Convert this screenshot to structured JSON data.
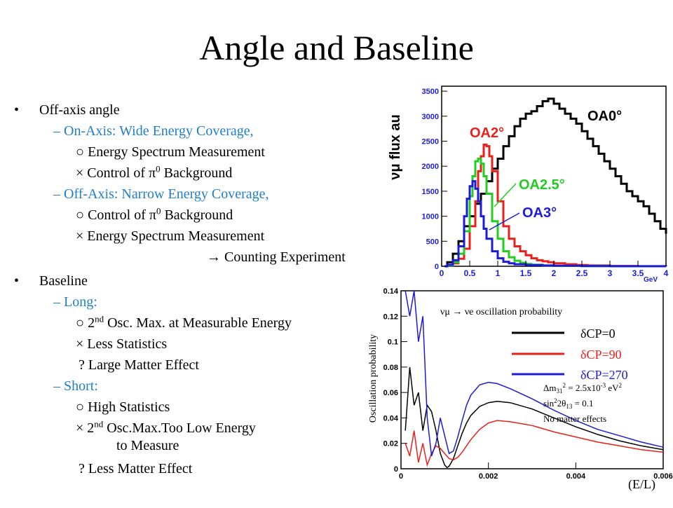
{
  "title": "Angle and Baseline",
  "bullets": {
    "offaxis": {
      "label": "Off-axis angle",
      "onaxis": {
        "label": "On-Axis: Wide Energy Coverage,",
        "item1": "○ Energy Spectrum Measurement",
        "item2_pre": "× Control of ",
        "item2_sym": "π",
        "item2_sup": "0",
        "item2_post": " Background"
      },
      "offaxis_sub": {
        "label": "Off-Axis: Narrow Energy Coverage,",
        "item1_pre": "○ Control of ",
        "item1_sym": "π",
        "item1_sup": "0",
        "item1_post": " Background",
        "item2": "× Energy Spectrum Measurement",
        "item3": "→ Counting Experiment"
      }
    },
    "baseline": {
      "label": "Baseline",
      "long": {
        "label": "Long:",
        "item1_pre": "○ 2",
        "item1_sup": "nd",
        "item1_post": " Osc. Max. at Measurable Energy",
        "item2": "× Less Statistics",
        "item3": "? Large Matter Effect"
      },
      "short": {
        "label": "Short:",
        "item1": "○ High Statistics",
        "item2_pre": "× 2",
        "item2_sup": "nd",
        "item2_post": " Osc.Max.Too Low Energy",
        "item2_cont": "to Measure",
        "item3": "? Less Matter Effect"
      }
    }
  },
  "chart_data": [
    {
      "type": "line",
      "ylabel": "νμ flux au",
      "xlabel": "GeV",
      "xlim": [
        0,
        4
      ],
      "ylim": [
        0,
        3600
      ],
      "x_ticks": [
        "0",
        "0.5",
        "1",
        "1.5",
        "2",
        "2.5",
        "3",
        "3.5",
        "4"
      ],
      "y_ticks": [
        "0",
        "500",
        "1000",
        "1500",
        "2000",
        "2500",
        "3000",
        "3500"
      ],
      "series": [
        {
          "name": "OA0°",
          "color": "#000000",
          "x": [
            0.05,
            0.1,
            0.2,
            0.3,
            0.4,
            0.5,
            0.6,
            0.7,
            0.8,
            0.9,
            1.0,
            1.1,
            1.2,
            1.3,
            1.4,
            1.5,
            1.6,
            1.7,
            1.8,
            1.9,
            2.0,
            2.1,
            2.2,
            2.3,
            2.4,
            2.5,
            2.6,
            2.7,
            2.8,
            2.9,
            3.0,
            3.1,
            3.2,
            3.3,
            3.4,
            3.5,
            3.6,
            3.7,
            3.8,
            3.9,
            4.0
          ],
          "y": [
            0,
            80,
            250,
            500,
            800,
            1000,
            1250,
            1450,
            1700,
            1950,
            2150,
            2400,
            2600,
            2800,
            2950,
            3050,
            3100,
            3200,
            3300,
            3350,
            3250,
            3150,
            3050,
            2950,
            2850,
            2700,
            2550,
            2400,
            2250,
            2100,
            1950,
            1800,
            1650,
            1500,
            1400,
            1300,
            1200,
            1050,
            900,
            750,
            650
          ]
        },
        {
          "name": "OA2°",
          "color": "#e8201c",
          "x": [
            0.05,
            0.1,
            0.2,
            0.3,
            0.4,
            0.5,
            0.6,
            0.65,
            0.7,
            0.75,
            0.8,
            0.85,
            0.9,
            1.0,
            1.1,
            1.2,
            1.3,
            1.4,
            1.5,
            1.6,
            1.7,
            1.8,
            1.9,
            2.0,
            2.2,
            2.4,
            2.6,
            3.0,
            3.5,
            4.0
          ],
          "y": [
            0,
            20,
            60,
            150,
            350,
            800,
            1300,
            1900,
            2200,
            2430,
            2400,
            2200,
            1900,
            1300,
            800,
            550,
            400,
            300,
            220,
            160,
            120,
            100,
            80,
            60,
            40,
            25,
            15,
            5,
            0,
            0
          ]
        },
        {
          "name": "OA2.5°",
          "color": "#22cc22",
          "x": [
            0.05,
            0.1,
            0.2,
            0.3,
            0.4,
            0.5,
            0.55,
            0.6,
            0.65,
            0.7,
            0.75,
            0.8,
            0.9,
            1.0,
            1.1,
            1.2,
            1.3,
            1.4,
            1.5,
            1.6,
            1.8,
            2.0,
            2.5,
            3.0,
            4.0
          ],
          "y": [
            0,
            20,
            80,
            250,
            700,
            1400,
            1800,
            2100,
            2150,
            2050,
            1800,
            1450,
            900,
            550,
            300,
            180,
            110,
            70,
            45,
            30,
            15,
            8,
            2,
            0,
            0
          ]
        },
        {
          "name": "OA3°",
          "color": "#1c1cd6",
          "x": [
            0.05,
            0.1,
            0.2,
            0.3,
            0.4,
            0.45,
            0.5,
            0.55,
            0.6,
            0.65,
            0.7,
            0.75,
            0.8,
            0.9,
            1.0,
            1.1,
            1.2,
            1.3,
            1.5,
            1.8,
            2.0,
            2.5,
            3.0,
            4.0
          ],
          "y": [
            0,
            30,
            120,
            400,
            1000,
            1350,
            1600,
            1700,
            1550,
            1300,
            1000,
            750,
            550,
            300,
            160,
            90,
            60,
            40,
            25,
            15,
            10,
            5,
            2,
            0
          ]
        }
      ],
      "legend_labels": [
        "OA0°",
        "OA2°",
        "OA2.5°",
        "OA3°"
      ]
    },
    {
      "type": "line",
      "ylabel": "Oscillation probability",
      "xlabel": "(E/L)",
      "xlim": [
        0,
        0.006
      ],
      "ylim": [
        0,
        0.14
      ],
      "x_ticks": [
        "0",
        "0.002",
        "0.004",
        "0.006"
      ],
      "y_ticks": [
        "0",
        "0.02",
        "0.04",
        "0.06",
        "0.08",
        "0.1",
        "0.12",
        "0.14"
      ],
      "legend_title": "νμ → νe oscillation probability",
      "series": [
        {
          "name": "δCP=0",
          "color": "#000000",
          "x": [
            0.0001,
            0.0002,
            0.0003,
            0.0004,
            0.0005,
            0.0006,
            0.0007,
            0.0008,
            0.0009,
            0.001,
            0.00105,
            0.0011,
            0.0012,
            0.0013,
            0.0014,
            0.0015,
            0.0016,
            0.0018,
            0.002,
            0.0022,
            0.0025,
            0.003,
            0.0035,
            0.004,
            0.0045,
            0.005,
            0.0055,
            0.006
          ],
          "y": [
            0.03,
            0.08,
            0.05,
            0.06,
            0.03,
            0.05,
            0.045,
            0.03,
            0.012,
            0.003,
            0.001,
            0.002,
            0.008,
            0.018,
            0.028,
            0.036,
            0.042,
            0.049,
            0.052,
            0.053,
            0.052,
            0.047,
            0.04,
            0.033,
            0.027,
            0.022,
            0.018,
            0.015
          ]
        },
        {
          "name": "δCP=90",
          "color": "#e8201c",
          "x": [
            0.0001,
            0.0002,
            0.0003,
            0.0004,
            0.0005,
            0.0006,
            0.0007,
            0.0008,
            0.0009,
            0.001,
            0.0011,
            0.0012,
            0.0013,
            0.0014,
            0.0015,
            0.0016,
            0.0018,
            0.002,
            0.0022,
            0.0025,
            0.003,
            0.0035,
            0.004,
            0.0045,
            0.005,
            0.0055,
            0.006
          ],
          "y": [
            0.02,
            0.01,
            0.03,
            0.005,
            0.02,
            0.003,
            0.012,
            0.018,
            0.016,
            0.012,
            0.008,
            0.007,
            0.009,
            0.013,
            0.018,
            0.023,
            0.031,
            0.036,
            0.038,
            0.037,
            0.034,
            0.029,
            0.025,
            0.021,
            0.018,
            0.015,
            0.013
          ]
        },
        {
          "name": "δCP=270",
          "color": "#1c1cd6",
          "x": [
            0.0001,
            0.0002,
            0.0003,
            0.0004,
            0.0005,
            0.0006,
            0.0007,
            0.0008,
            0.0009,
            0.001,
            0.0011,
            0.0012,
            0.0013,
            0.0014,
            0.0015,
            0.0016,
            0.0018,
            0.002,
            0.0022,
            0.0025,
            0.003,
            0.0035,
            0.004,
            0.0045,
            0.005,
            0.0055,
            0.006
          ],
          "y": [
            0.14,
            0.12,
            0.14,
            0.1,
            0.12,
            0.04,
            0.01,
            0.02,
            0.04,
            0.026,
            0.012,
            0.014,
            0.025,
            0.038,
            0.05,
            0.058,
            0.066,
            0.068,
            0.067,
            0.063,
            0.055,
            0.046,
            0.038,
            0.031,
            0.026,
            0.021,
            0.017
          ]
        }
      ],
      "params_line1_pre": "Δm",
      "params_line1_sub": "31",
      "params_line1_sup": "2",
      "params_line1_post": " = 2.5x10",
      "params_line1_exp": "-3",
      "params_line1_unit": " eV",
      "params_line1_unit_sup": "2",
      "params_line2_pre": "sin",
      "params_line2_sup": "2",
      "params_line2_mid": "2θ",
      "params_line2_sub": "13",
      "params_line2_post": " = 0.1",
      "params_line3": "No matter effects"
    }
  ]
}
